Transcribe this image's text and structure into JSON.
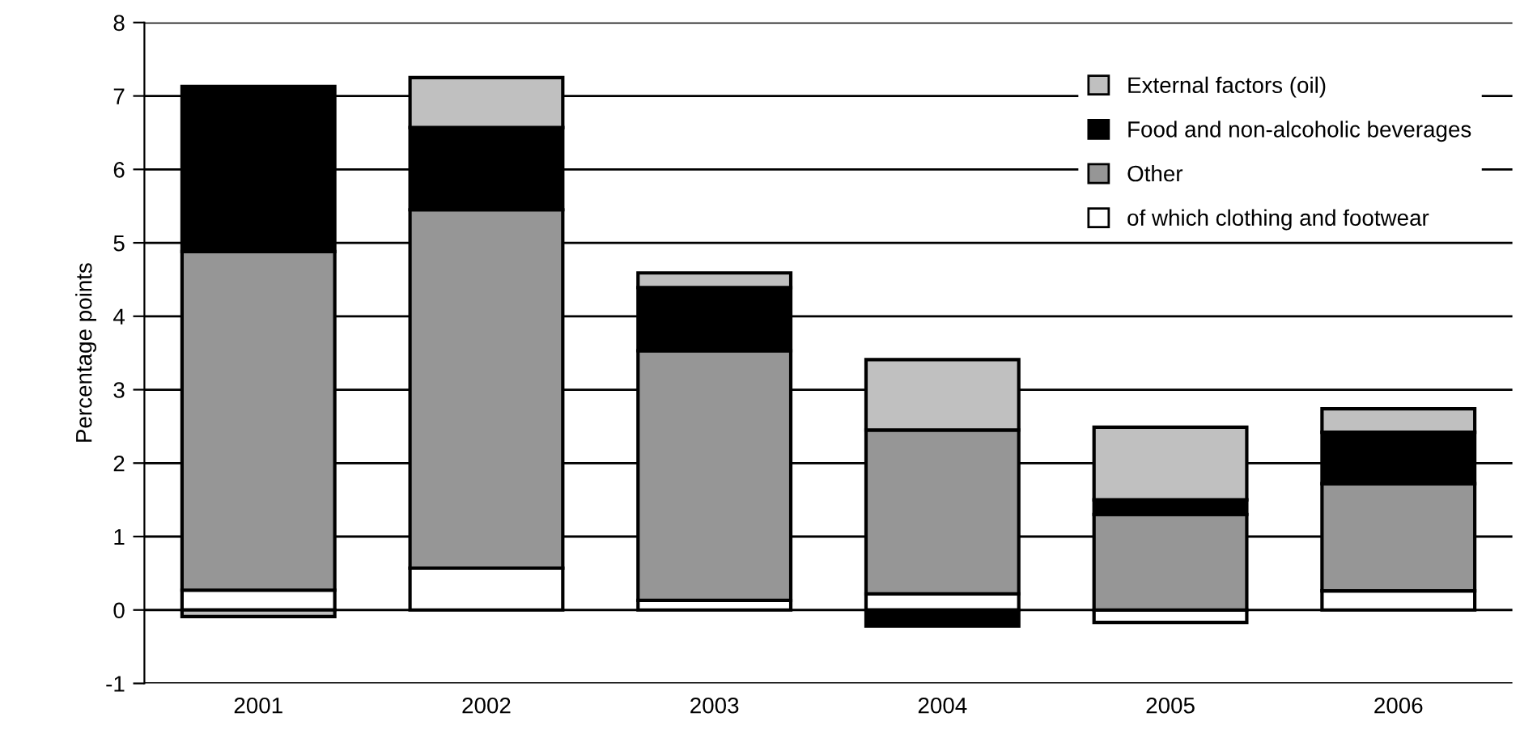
{
  "chart_data": {
    "type": "bar",
    "stacked": true,
    "ylabel": "Percentage points",
    "categories": [
      "2001",
      "2002",
      "2003",
      "2004",
      "2005",
      "2006"
    ],
    "series": [
      {
        "name": "of which clothing and footwear",
        "color": "#ffffff",
        "values": [
          0.27,
          0.57,
          0.13,
          0.22,
          -0.17,
          0.26
        ]
      },
      {
        "name": "Other",
        "color": "#969696",
        "values": [
          4.61,
          4.88,
          3.4,
          2.23,
          1.3,
          1.46
        ]
      },
      {
        "name": "Food and non-alcoholic beverages",
        "color": "#000000",
        "values": [
          2.25,
          1.12,
          0.86,
          -0.22,
          0.2,
          0.7
        ]
      },
      {
        "name": "External factors (oil)",
        "color": "#c0c0c0",
        "values": [
          -0.09,
          0.68,
          0.2,
          0.96,
          0.99,
          0.32
        ]
      }
    ],
    "ylim": [
      -1,
      8
    ],
    "yticks": [
      -1,
      0,
      1,
      2,
      3,
      4,
      5,
      6,
      7,
      8
    ],
    "grid": "y",
    "legend": "top right"
  }
}
